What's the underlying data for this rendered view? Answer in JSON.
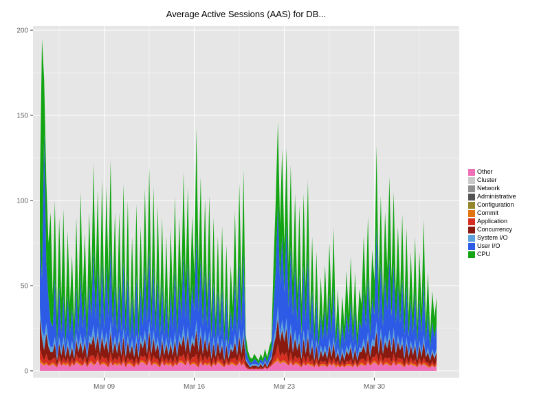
{
  "chart_data": {
    "type": "area",
    "stacked": true,
    "title": "Average Active Sessions (AAS) for DB...",
    "xlabel": "",
    "ylabel": "",
    "ylim": [
      0,
      200
    ],
    "y_ticks": [
      0,
      50,
      100,
      150,
      200
    ],
    "y_tick_labels": [
      "0",
      "50",
      "100",
      "150",
      "200"
    ],
    "x_tick_labels": [
      "Mar 09",
      "Mar 16",
      "Mar 23",
      "Mar 30"
    ],
    "x_tick_days": [
      5,
      12,
      19,
      26
    ],
    "x_domain_days": [
      0,
      31
    ],
    "grid": true,
    "legend_position": "right",
    "legend_order_top_to_bottom": [
      "Other",
      "Cluster",
      "Network",
      "Administrative",
      "Configuration",
      "Commit",
      "Application",
      "Concurrency",
      "System I/O",
      "User I/O",
      "CPU"
    ],
    "colors": {
      "panel": "#E6E6E6",
      "grid_major": "#FFFFFF",
      "grid_minor": "rgba(255,255,255,0.55)",
      "axis_text": "#606060",
      "tick_mark": "#333333",
      "title_text": "#000000"
    },
    "series": [
      {
        "name": "Other",
        "color": "#EE6FB5",
        "values": [
          5,
          4,
          3,
          4,
          3,
          3,
          4,
          3,
          2,
          5,
          3,
          4,
          3,
          4,
          2,
          4,
          3,
          5,
          4,
          3,
          3,
          5,
          2,
          4,
          5,
          3,
          4,
          6,
          3,
          4,
          4,
          3,
          2,
          5,
          3,
          4,
          3,
          4,
          3,
          5,
          2,
          4,
          4,
          3,
          2,
          4,
          3,
          5,
          5,
          4,
          3,
          6,
          3,
          4,
          4,
          3,
          2,
          5,
          3,
          4,
          3,
          4,
          2,
          4,
          3,
          5,
          5,
          4,
          3,
          6,
          3,
          4,
          4,
          3,
          2,
          5,
          3,
          4,
          3,
          4,
          2,
          4,
          3,
          5,
          4,
          3,
          2,
          4,
          3,
          4,
          4,
          3,
          3,
          5,
          3,
          4,
          2,
          1,
          1,
          1,
          1,
          1,
          1,
          1,
          1,
          2,
          1,
          2,
          3,
          4,
          5,
          6,
          4,
          5,
          5,
          4,
          3,
          5,
          3,
          4,
          4,
          3,
          2,
          4,
          3,
          4,
          3,
          3,
          2,
          4,
          2,
          3,
          3,
          3,
          2,
          4,
          3,
          4,
          2,
          3,
          2,
          3,
          2,
          3,
          3,
          3,
          2,
          4,
          2,
          3,
          4,
          3,
          3,
          5,
          3,
          4,
          5,
          4,
          3,
          5,
          3,
          4,
          4,
          3,
          3,
          5,
          3,
          4,
          4,
          3,
          2,
          4,
          3,
          4,
          3,
          3,
          2,
          4,
          3,
          4,
          3,
          2,
          2,
          3,
          2,
          3
        ]
      },
      {
        "name": "Cluster",
        "color": "#C9C9C9",
        "value_all": 0
      },
      {
        "name": "Network",
        "color": "#8F8F8F",
        "value_all": 0
      },
      {
        "name": "Administrative",
        "color": "#525252",
        "value_all": 0
      },
      {
        "name": "Configuration",
        "color": "#94862B",
        "value_all": 0
      },
      {
        "name": "Commit",
        "color": "#E2740F",
        "values": [
          2,
          1,
          1,
          1,
          0,
          1,
          1,
          1,
          0,
          1,
          0,
          1,
          1,
          1,
          0,
          1,
          0,
          1,
          1,
          1,
          0,
          1,
          0,
          1,
          1,
          1,
          0,
          1,
          0,
          1,
          1,
          1,
          0,
          1,
          0,
          1,
          1,
          1,
          0,
          1,
          0,
          1,
          1,
          1,
          0,
          1,
          0,
          1,
          1,
          1,
          0,
          1,
          0,
          1,
          1,
          1,
          0,
          1,
          0,
          1,
          1,
          1,
          0,
          1,
          0,
          1,
          1,
          1,
          0,
          1,
          0,
          1,
          1,
          1,
          0,
          1,
          0,
          1,
          1,
          1,
          0,
          1,
          0,
          1,
          1,
          1,
          0,
          1,
          0,
          1,
          1,
          1,
          0,
          1,
          0,
          1,
          0,
          0,
          0,
          0,
          0,
          0,
          0,
          0,
          0,
          0,
          0,
          0,
          0,
          1,
          1,
          2,
          1,
          1,
          1,
          1,
          0,
          1,
          0,
          1,
          1,
          1,
          0,
          1,
          0,
          1,
          1,
          1,
          0,
          1,
          0,
          1,
          1,
          1,
          0,
          1,
          0,
          1,
          1,
          1,
          0,
          1,
          0,
          1,
          1,
          1,
          0,
          1,
          0,
          1,
          1,
          1,
          0,
          1,
          0,
          1,
          1,
          1,
          0,
          1,
          0,
          1,
          1,
          1,
          0,
          1,
          0,
          1,
          1,
          1,
          0,
          1,
          0,
          1,
          1,
          1,
          0,
          1,
          0,
          1,
          1,
          1,
          0,
          1,
          0,
          1
        ]
      },
      {
        "name": "Application",
        "color": "#D62F21",
        "values": [
          6,
          4,
          2,
          5,
          3,
          2,
          2,
          4,
          1,
          3,
          2,
          3,
          1,
          3,
          2,
          3,
          1,
          4,
          2,
          4,
          2,
          3,
          1,
          3,
          3,
          5,
          2,
          4,
          2,
          4,
          2,
          4,
          2,
          5,
          2,
          3,
          2,
          4,
          1,
          4,
          2,
          3,
          1,
          3,
          2,
          3,
          1,
          3,
          2,
          4,
          2,
          5,
          2,
          4,
          2,
          3,
          1,
          3,
          2,
          3,
          1,
          3,
          2,
          4,
          1,
          3,
          2,
          5,
          2,
          4,
          2,
          3,
          3,
          6,
          2,
          4,
          2,
          4,
          2,
          4,
          1,
          3,
          1,
          3,
          1,
          3,
          1,
          3,
          1,
          2,
          2,
          4,
          2,
          4,
          2,
          4,
          1,
          1,
          0,
          1,
          0,
          1,
          0,
          1,
          0,
          1,
          0,
          1,
          1,
          3,
          4,
          8,
          3,
          5,
          3,
          6,
          2,
          5,
          2,
          4,
          2,
          4,
          1,
          4,
          2,
          4,
          1,
          3,
          1,
          3,
          1,
          2,
          1,
          2,
          1,
          3,
          1,
          3,
          1,
          2,
          1,
          2,
          1,
          2,
          1,
          3,
          1,
          2,
          1,
          2,
          2,
          3,
          2,
          4,
          1,
          3,
          2,
          5,
          2,
          4,
          2,
          3,
          2,
          4,
          2,
          4,
          2,
          3,
          2,
          3,
          1,
          3,
          1,
          3,
          1,
          3,
          1,
          3,
          1,
          3,
          1,
          2,
          1,
          2,
          1,
          2
        ]
      },
      {
        "name": "Concurrency",
        "color": "#8A1A10",
        "values": [
          18,
          10,
          6,
          12,
          8,
          5,
          4,
          8,
          3,
          7,
          4,
          8,
          3,
          7,
          4,
          6,
          3,
          8,
          4,
          9,
          5,
          8,
          4,
          9,
          6,
          12,
          6,
          10,
          5,
          11,
          5,
          10,
          6,
          12,
          5,
          9,
          4,
          9,
          5,
          10,
          4,
          9,
          4,
          8,
          4,
          9,
          4,
          8,
          5,
          10,
          5,
          11,
          5,
          10,
          4,
          9,
          4,
          9,
          4,
          8,
          4,
          8,
          5,
          9,
          4,
          9,
          6,
          11,
          6,
          10,
          5,
          9,
          6,
          14,
          7,
          11,
          5,
          10,
          5,
          9,
          4,
          8,
          4,
          8,
          4,
          8,
          3,
          7,
          3,
          6,
          4,
          9,
          4,
          10,
          5,
          11,
          3,
          2,
          1,
          1,
          2,
          1,
          1,
          2,
          1,
          2,
          1,
          2,
          3,
          7,
          10,
          15,
          9,
          13,
          8,
          14,
          7,
          12,
          6,
          10,
          5,
          9,
          4,
          10,
          5,
          11,
          4,
          8,
          3,
          7,
          3,
          6,
          3,
          6,
          4,
          7,
          4,
          8,
          3,
          5,
          2,
          5,
          3,
          6,
          4,
          7,
          3,
          6,
          3,
          5,
          4,
          8,
          5,
          9,
          4,
          7,
          6,
          13,
          5,
          10,
          5,
          9,
          6,
          11,
          6,
          10,
          5,
          9,
          5,
          9,
          4,
          8,
          4,
          7,
          4,
          8,
          3,
          7,
          4,
          9,
          3,
          6,
          3,
          5,
          4,
          5
        ]
      },
      {
        "name": "System I/O",
        "color": "#5BA3DC",
        "values": [
          6,
          5,
          8,
          6,
          4,
          3,
          3,
          4,
          2,
          4,
          3,
          4,
          2,
          4,
          3,
          4,
          2,
          4,
          3,
          5,
          3,
          4,
          2,
          4,
          4,
          6,
          3,
          5,
          3,
          5,
          3,
          5,
          3,
          6,
          3,
          4,
          3,
          5,
          2,
          5,
          3,
          4,
          2,
          4,
          3,
          4,
          2,
          4,
          3,
          5,
          3,
          6,
          3,
          5,
          3,
          4,
          2,
          4,
          3,
          4,
          2,
          4,
          3,
          5,
          2,
          4,
          3,
          6,
          3,
          5,
          3,
          4,
          3,
          6,
          3,
          5,
          2,
          5,
          2,
          5,
          2,
          4,
          2,
          4,
          2,
          4,
          2,
          4,
          2,
          3,
          2,
          5,
          2,
          5,
          3,
          5,
          1,
          1,
          1,
          1,
          1,
          1,
          1,
          1,
          1,
          1,
          1,
          1,
          2,
          4,
          5,
          7,
          4,
          6,
          4,
          6,
          3,
          5,
          3,
          5,
          3,
          5,
          2,
          5,
          3,
          5,
          2,
          4,
          2,
          3,
          2,
          3,
          2,
          3,
          2,
          4,
          2,
          4,
          1,
          3,
          1,
          3,
          2,
          3,
          2,
          3,
          2,
          3,
          1,
          3,
          2,
          4,
          2,
          4,
          2,
          4,
          3,
          6,
          2,
          5,
          2,
          4,
          3,
          5,
          3,
          5,
          2,
          4,
          2,
          4,
          2,
          4,
          2,
          3,
          2,
          4,
          2,
          3,
          2,
          4,
          1,
          3,
          1,
          2,
          2,
          2
        ]
      },
      {
        "name": "User I/O",
        "color": "#2E5BE6",
        "values": [
          40,
          30,
          120,
          35,
          25,
          15,
          12,
          35,
          8,
          30,
          10,
          25,
          6,
          25,
          10,
          20,
          6,
          28,
          8,
          35,
          12,
          25,
          8,
          30,
          12,
          45,
          15,
          35,
          10,
          40,
          10,
          40,
          18,
          45,
          12,
          30,
          8,
          30,
          12,
          40,
          10,
          35,
          6,
          25,
          8,
          35,
          8,
          28,
          10,
          38,
          15,
          42,
          12,
          38,
          8,
          35,
          10,
          30,
          8,
          25,
          6,
          28,
          12,
          38,
          10,
          30,
          14,
          42,
          16,
          38,
          12,
          30,
          18,
          50,
          20,
          40,
          14,
          35,
          12,
          38,
          10,
          32,
          8,
          26,
          8,
          30,
          8,
          25,
          6,
          20,
          10,
          32,
          10,
          40,
          14,
          45,
          6,
          3,
          2,
          1,
          3,
          2,
          1,
          2,
          2,
          3,
          2,
          4,
          4,
          20,
          35,
          60,
          30,
          50,
          25,
          55,
          22,
          45,
          18,
          38,
          14,
          35,
          12,
          38,
          16,
          42,
          10,
          28,
          8,
          24,
          6,
          18,
          8,
          22,
          10,
          26,
          12,
          30,
          6,
          16,
          5,
          14,
          8,
          20,
          10,
          24,
          8,
          20,
          6,
          16,
          12,
          28,
          14,
          32,
          10,
          24,
          16,
          55,
          18,
          38,
          14,
          34,
          20,
          42,
          18,
          38,
          16,
          30,
          14,
          34,
          12,
          30,
          10,
          24,
          10,
          28,
          8,
          24,
          12,
          32,
          8,
          20,
          6,
          16,
          10,
          14
        ]
      },
      {
        "name": "CPU",
        "color": "#12A412",
        "values": [
          31,
          141,
          31,
          48,
          32,
          64,
          18,
          45,
          15,
          40,
          20,
          50,
          14,
          38,
          18,
          30,
          12,
          40,
          14,
          48,
          20,
          35,
          14,
          42,
          18,
          50,
          22,
          45,
          18,
          48,
          14,
          45,
          25,
          50,
          20,
          42,
          12,
          40,
          18,
          45,
          15,
          44,
          10,
          35,
          12,
          42,
          14,
          36,
          14,
          45,
          20,
          48,
          16,
          46,
          12,
          42,
          16,
          38,
          12,
          34,
          10,
          36,
          16,
          42,
          14,
          38,
          18,
          48,
          22,
          44,
          16,
          40,
          22,
          62,
          25,
          48,
          18,
          42,
          16,
          42,
          14,
          38,
          12,
          32,
          12,
          36,
          10,
          30,
          8,
          26,
          14,
          40,
          14,
          45,
          20,
          48,
          8,
          4,
          3,
          2,
          3,
          2,
          2,
          3,
          2,
          4,
          3,
          4,
          5,
          25,
          40,
          48,
          35,
          50,
          28,
          45,
          25,
          48,
          20,
          42,
          16,
          40,
          18,
          42,
          20,
          45,
          12,
          32,
          10,
          28,
          8,
          22,
          10,
          25,
          12,
          30,
          14,
          34,
          8,
          18,
          6,
          16,
          10,
          24,
          12,
          26,
          10,
          22,
          8,
          18,
          14,
          32,
          16,
          36,
          12,
          28,
          20,
          48,
          20,
          40,
          16,
          38,
          24,
          48,
          22,
          42,
          18,
          34,
          16,
          38,
          14,
          34,
          12,
          28,
          12,
          32,
          10,
          28,
          14,
          36,
          10,
          24,
          8,
          18,
          12,
          16
        ]
      }
    ]
  }
}
